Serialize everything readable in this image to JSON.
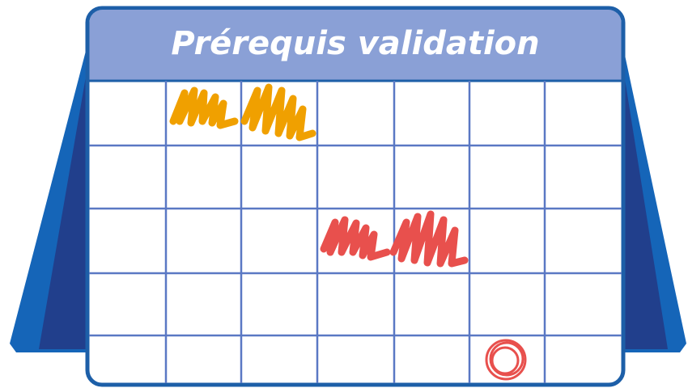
{
  "title": "Prérequis validation"
}
